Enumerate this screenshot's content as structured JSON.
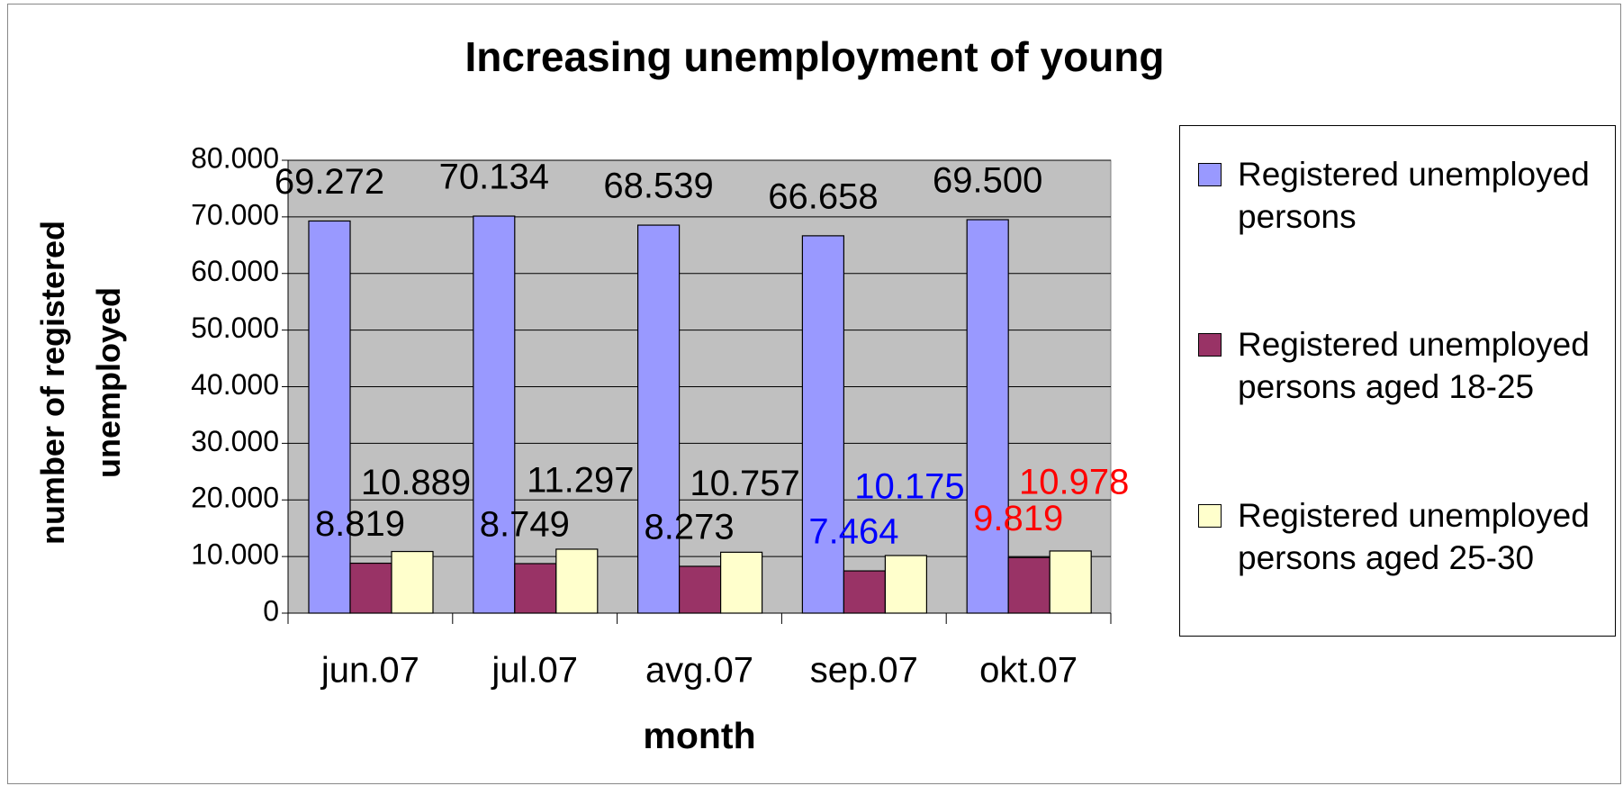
{
  "chart_data": {
    "type": "bar",
    "title": "Increasing unemployment of young",
    "x_label": "month",
    "y_label": "number of registered unemployed",
    "categories": [
      "jun.07",
      "jul.07",
      "avg.07",
      "sep.07",
      "okt.07"
    ],
    "series": [
      {
        "name": "Registered unemployed persons",
        "color": "#9999ff",
        "values": [
          69272,
          70134,
          68539,
          66658,
          69500
        ],
        "value_labels": [
          "69.272",
          "70.134",
          "68.539",
          "66.658",
          "69.500"
        ],
        "value_label_colors": [
          "#000000",
          "#000000",
          "#000000",
          "#000000",
          "#000000"
        ]
      },
      {
        "name": "Registered unemployed persons aged 18-25",
        "color": "#993366",
        "values": [
          8819,
          8749,
          8273,
          7464,
          9819
        ],
        "value_labels": [
          "8.819",
          "8.749",
          "8.273",
          "7.464",
          "9.819"
        ],
        "value_label_colors": [
          "#000000",
          "#000000",
          "#000000",
          "#0000ff",
          "#ff0000"
        ]
      },
      {
        "name": "Registered unemployed persons aged 25-30",
        "color": "#ffffcc",
        "values": [
          10889,
          11297,
          10757,
          10175,
          10978
        ],
        "value_labels": [
          "10.889",
          "11.297",
          "10.757",
          "10.175",
          "10.978"
        ],
        "value_label_colors": [
          "#000000",
          "#000000",
          "#000000",
          "#0000ff",
          "#ff0000"
        ]
      }
    ],
    "ylim": [
      0,
      80000
    ],
    "yticks": [
      0,
      {
        "value": 10000,
        "label": "10.000"
      },
      {
        "value": 20000,
        "label": "20.000"
      },
      {
        "value": 30000,
        "label": "30.000"
      },
      {
        "value": 40000,
        "label": "40.000"
      },
      {
        "value": 50000,
        "label": "50.000"
      },
      {
        "value": 60000,
        "label": "60.000"
      },
      {
        "value": 70000,
        "label": "70.000"
      },
      {
        "value": 80000,
        "label": "80.000"
      }
    ],
    "grid": true,
    "plot_background": "#c0c0c0",
    "legend_position": "right"
  }
}
